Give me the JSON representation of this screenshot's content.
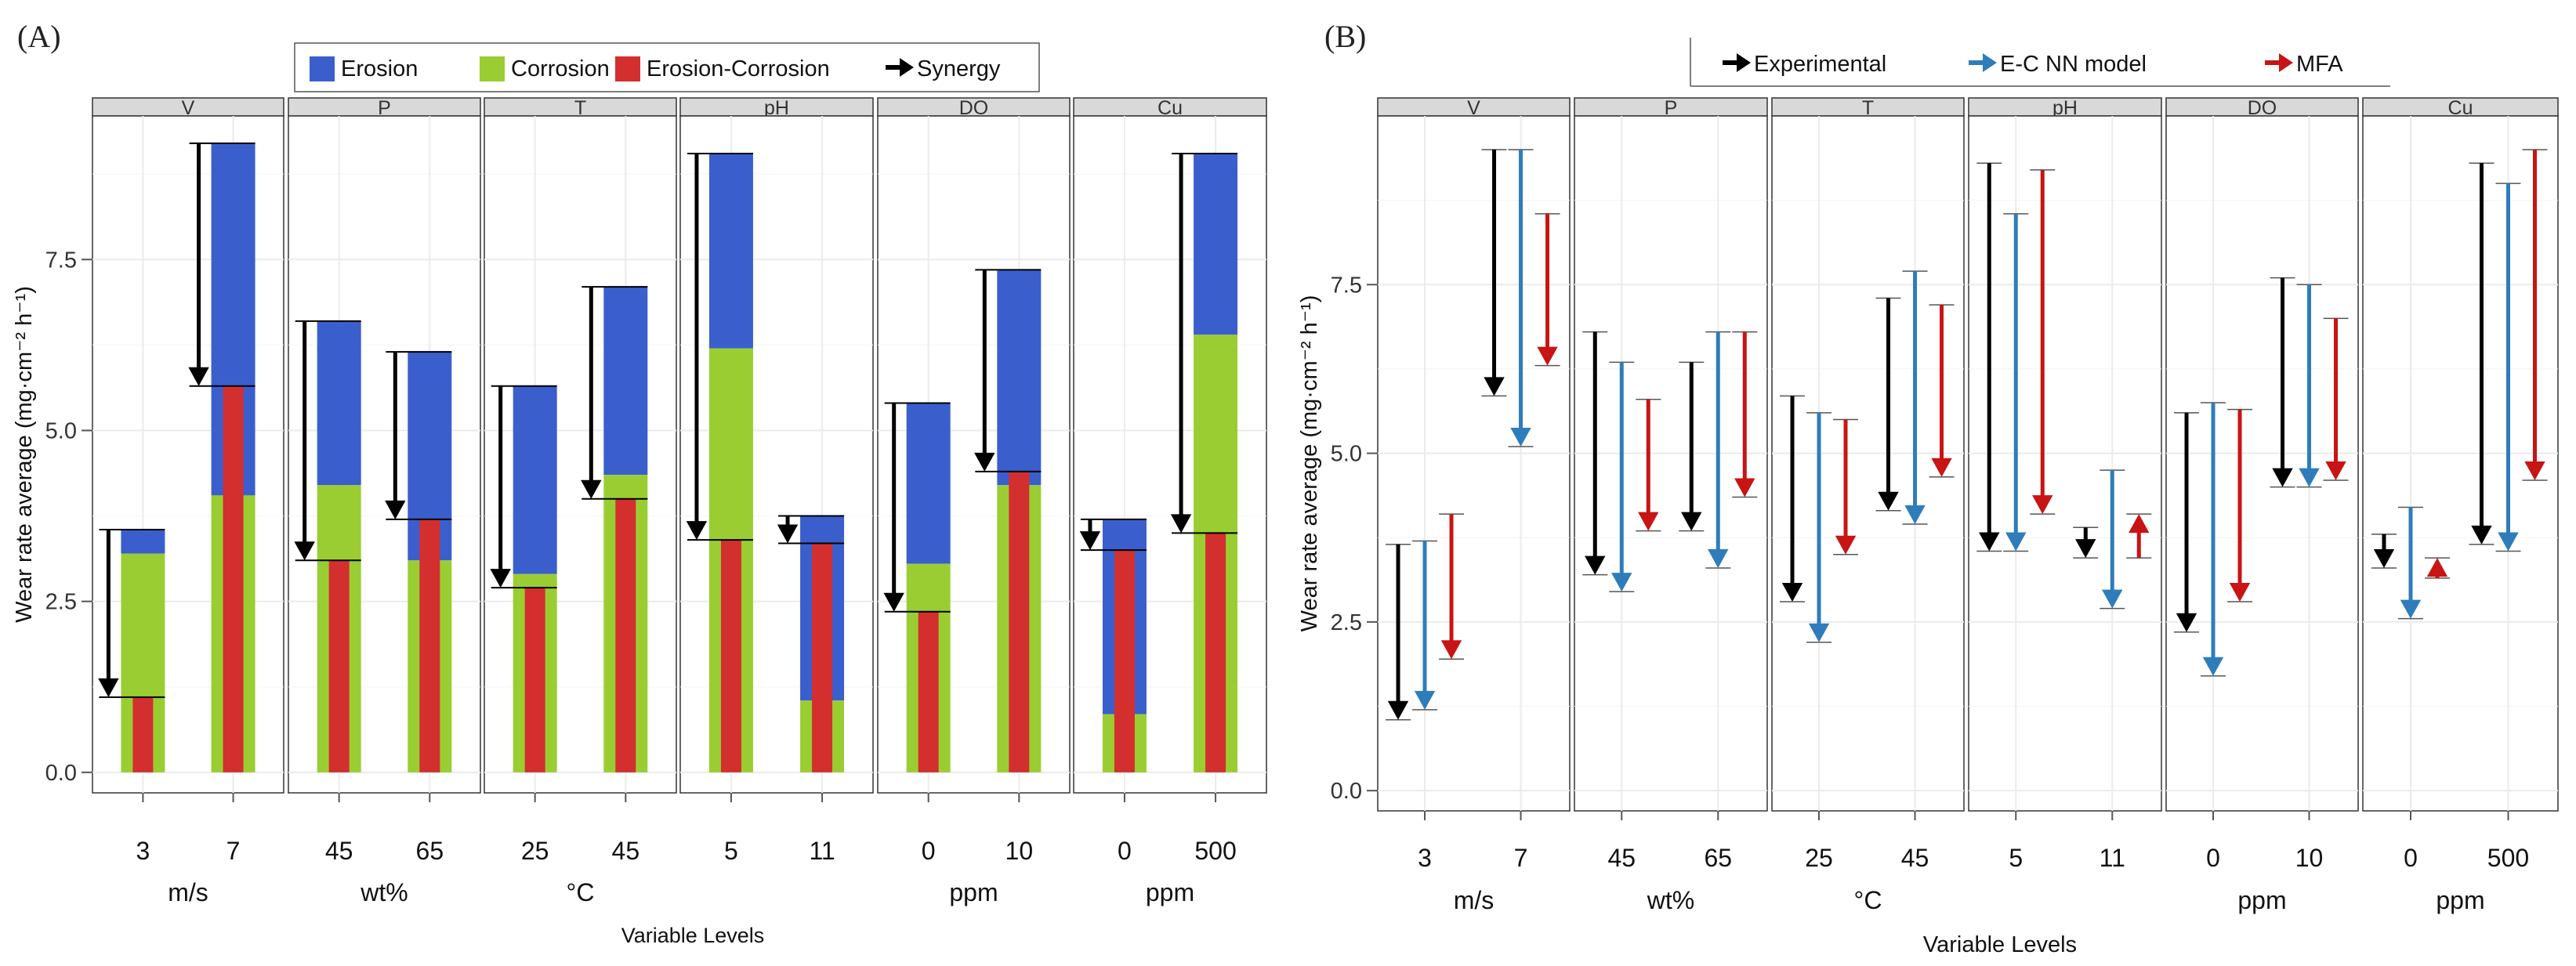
{
  "chart_data": [
    {
      "type": "bar",
      "panel_label": "(A)",
      "xlabel": "Variable Levels",
      "ylabel": "Wear rate average (mg·cm⁻² h⁻¹)",
      "ylim": [
        -0.3,
        9.6
      ],
      "yticks": [
        "0.0",
        "2.5",
        "5.0",
        "7.5"
      ],
      "grid": true,
      "legend": {
        "position": "top",
        "items": [
          {
            "label": "Erosion",
            "kind": "box",
            "color": "#3A5FCD"
          },
          {
            "label": "Corrosion",
            "kind": "box",
            "color": "#9ACD32"
          },
          {
            "label": "Erosion-Corrosion",
            "kind": "box",
            "color": "#D32F2F"
          },
          {
            "label": "Synergy",
            "kind": "arrow",
            "color": "#000000"
          }
        ]
      },
      "series_colors": {
        "erosion": "#3A5FCD",
        "corrosion": "#9ACD32",
        "erosion_corrosion": "#D32F2F",
        "synergy": "#000000"
      },
      "facets": [
        {
          "name": "V",
          "unit": "m/s",
          "levels": [
            {
              "label": "3",
              "corrosion": 3.2,
              "erosion_top": 3.55,
              "ec": 1.1,
              "synergy_from": 3.55,
              "synergy_to": 1.1
            },
            {
              "label": "7",
              "corrosion": 4.05,
              "erosion_top": 9.2,
              "ec": 5.65,
              "synergy_from": 9.2,
              "synergy_to": 5.65
            }
          ]
        },
        {
          "name": "P",
          "unit": "wt%",
          "levels": [
            {
              "label": "45",
              "corrosion": 4.2,
              "erosion_top": 6.6,
              "ec": 3.1,
              "synergy_from": 6.6,
              "synergy_to": 3.1
            },
            {
              "label": "65",
              "corrosion": 3.1,
              "erosion_top": 6.15,
              "ec": 3.7,
              "synergy_from": 6.15,
              "synergy_to": 3.7
            }
          ]
        },
        {
          "name": "T",
          "unit": "°C",
          "levels": [
            {
              "label": "25",
              "corrosion": 2.9,
              "erosion_top": 5.65,
              "ec": 2.7,
              "synergy_from": 5.65,
              "synergy_to": 2.7
            },
            {
              "label": "45",
              "corrosion": 4.35,
              "erosion_top": 7.1,
              "ec": 4.0,
              "synergy_from": 7.1,
              "synergy_to": 4.0
            }
          ]
        },
        {
          "name": "pH",
          "unit": "",
          "levels": [
            {
              "label": "5",
              "corrosion": 6.2,
              "erosion_top": 9.05,
              "ec": 3.4,
              "synergy_from": 9.05,
              "synergy_to": 3.4
            },
            {
              "label": "11",
              "corrosion": 1.05,
              "erosion_top": 3.75,
              "ec": 3.35,
              "synergy_from": 3.75,
              "synergy_to": 3.35
            }
          ]
        },
        {
          "name": "DO",
          "unit": "ppm",
          "levels": [
            {
              "label": "0",
              "corrosion": 3.05,
              "erosion_top": 5.4,
              "ec": 2.35,
              "synergy_from": 5.4,
              "synergy_to": 2.35
            },
            {
              "label": "10",
              "corrosion": 4.2,
              "erosion_top": 7.35,
              "ec": 4.4,
              "synergy_from": 7.35,
              "synergy_to": 4.4
            }
          ]
        },
        {
          "name": "Cu",
          "unit": "ppm",
          "levels": [
            {
              "label": "0",
              "corrosion": 0.85,
              "erosion_top": 3.7,
              "ec": 3.25,
              "synergy_from": 3.7,
              "synergy_to": 3.25
            },
            {
              "label": "500",
              "corrosion": 6.4,
              "erosion_top": 9.05,
              "ec": 3.5,
              "synergy_from": 9.05,
              "synergy_to": 3.5
            }
          ]
        }
      ]
    },
    {
      "type": "arrow",
      "panel_label": "(B)",
      "xlabel": "Variable Levels",
      "ylabel": "Wear rate average (mg·cm⁻² h⁻¹)",
      "ylim": [
        -0.3,
        10.0
      ],
      "yticks": [
        "0.0",
        "2.5",
        "5.0",
        "7.5"
      ],
      "grid": true,
      "legend": {
        "position": "top",
        "items": [
          {
            "label": "Experimental",
            "color": "#000000"
          },
          {
            "label": "E-C NN model",
            "color": "#2E7DBA"
          },
          {
            "label": "MFA",
            "color": "#C81414"
          }
        ]
      },
      "facets": [
        {
          "name": "V",
          "unit": "m/s",
          "levels": [
            {
              "label": "3",
              "experimental": [
                3.65,
                1.05
              ],
              "nn_model": [
                3.7,
                1.2
              ],
              "mfa": [
                4.1,
                1.95
              ]
            },
            {
              "label": "7",
              "experimental": [
                9.5,
                5.85
              ],
              "nn_model": [
                9.5,
                5.1
              ],
              "mfa": [
                8.55,
                6.3
              ]
            }
          ]
        },
        {
          "name": "P",
          "unit": "wt%",
          "levels": [
            {
              "label": "45",
              "experimental": [
                6.8,
                3.2
              ],
              "nn_model": [
                6.35,
                2.95
              ],
              "mfa": [
                5.8,
                3.85
              ]
            },
            {
              "label": "65",
              "experimental": [
                6.35,
                3.85
              ],
              "nn_model": [
                6.8,
                3.3
              ],
              "mfa": [
                6.8,
                4.35
              ]
            }
          ]
        },
        {
          "name": "T",
          "unit": "°C",
          "levels": [
            {
              "label": "25",
              "experimental": [
                5.85,
                2.8
              ],
              "nn_model": [
                5.6,
                2.2
              ],
              "mfa": [
                5.5,
                3.5
              ]
            },
            {
              "label": "45",
              "experimental": [
                7.3,
                4.15
              ],
              "nn_model": [
                7.7,
                3.95
              ],
              "mfa": [
                7.2,
                4.65
              ]
            }
          ]
        },
        {
          "name": "pH",
          "unit": "",
          "levels": [
            {
              "label": "5",
              "experimental": [
                9.3,
                3.55
              ],
              "nn_model": [
                8.55,
                3.55
              ],
              "mfa": [
                9.2,
                4.1
              ]
            },
            {
              "label": "11",
              "experimental": [
                3.9,
                3.45
              ],
              "nn_model": [
                4.75,
                2.7
              ],
              "mfa": [
                3.45,
                4.1
              ]
            }
          ]
        },
        {
          "name": "DO",
          "unit": "ppm",
          "levels": [
            {
              "label": "0",
              "experimental": [
                5.6,
                2.35
              ],
              "nn_model": [
                5.75,
                1.7
              ],
              "mfa": [
                5.65,
                2.8
              ]
            },
            {
              "label": "10",
              "experimental": [
                7.6,
                4.5
              ],
              "nn_model": [
                7.5,
                4.5
              ],
              "mfa": [
                7.0,
                4.6
              ]
            }
          ]
        },
        {
          "name": "Cu",
          "unit": "ppm",
          "levels": [
            {
              "label": "0",
              "experimental": [
                3.8,
                3.3
              ],
              "nn_model": [
                4.2,
                2.55
              ],
              "mfa": [
                3.15,
                3.45
              ]
            },
            {
              "label": "500",
              "experimental": [
                9.3,
                3.65
              ],
              "nn_model": [
                9.0,
                3.55
              ],
              "mfa": [
                9.5,
                4.6
              ]
            }
          ]
        }
      ]
    }
  ]
}
